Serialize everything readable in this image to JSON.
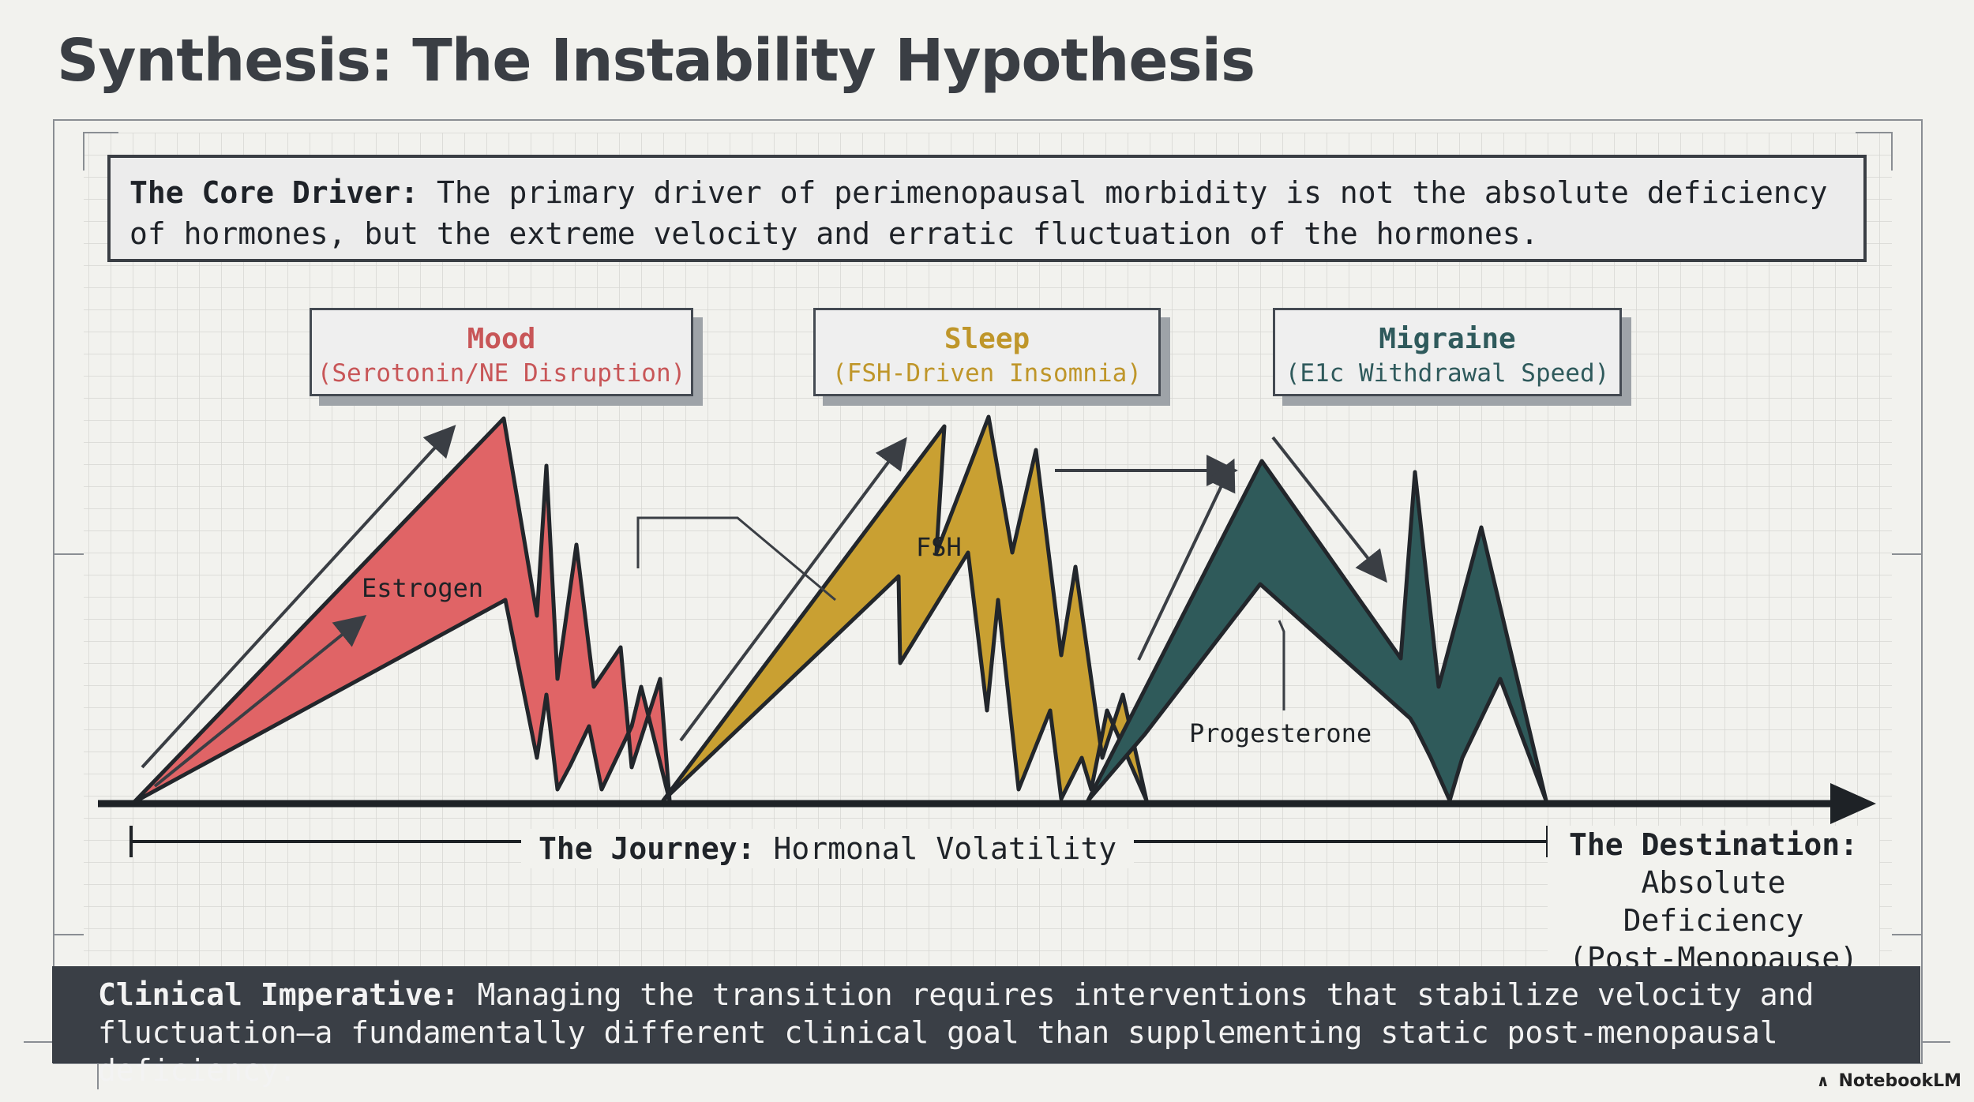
{
  "title": "Synthesis: The Instability Hypothesis",
  "core_driver": {
    "label": "The Core Driver:",
    "text": "The primary driver of perimenopausal morbidity is not the absolute deficiency of hormones, but the extreme velocity and erratic fluctuation of the hormones."
  },
  "cards": [
    {
      "title": "Mood",
      "subtitle": "(Serotonin/NE Disruption)",
      "color": "#d05a5c"
    },
    {
      "title": "Sleep",
      "subtitle": "(FSH-Driven Insomnia)",
      "color": "#c49a2c"
    },
    {
      "title": "Migraine",
      "subtitle": "(E1c Withdrawal Speed)",
      "color": "#2f5a5c"
    }
  ],
  "hormones": [
    {
      "label": "Estrogen",
      "color": "#e06466"
    },
    {
      "label": "FSH",
      "color": "#c9a032"
    },
    {
      "label": "Progesterone",
      "color": "#2f5a5a"
    }
  ],
  "journey": {
    "label": "The Journey:",
    "text": "Hormonal Volatility"
  },
  "destination": {
    "label": "The Destination:",
    "line1": "Absolute Deficiency",
    "line2": "(Post-Menopause)"
  },
  "clinical": {
    "label": "Clinical Imperative:",
    "text": "Managing the transition requires interventions that stabilize velocity and fluctuation—a fundamentally different clinical goal than supplementing static post-menopausal deficiency."
  },
  "brand": "NotebookLM"
}
